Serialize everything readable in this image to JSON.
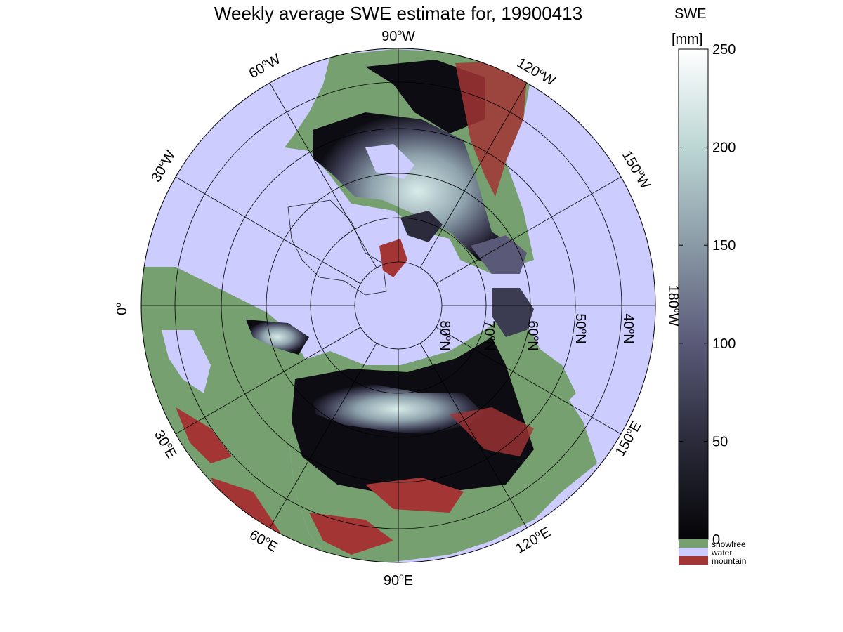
{
  "title": "Weekly average SWE estimate for, 19900413",
  "colorbar": {
    "label_line1": "SWE",
    "label_line2": "[mm]",
    "ticks": [
      0,
      50,
      100,
      150,
      200,
      250
    ],
    "range": [
      0,
      250
    ],
    "colormap": [
      "#050507",
      "#2b2b3b",
      "#5a5a78",
      "#8a9aa6",
      "#bcd6d4",
      "#ffffff"
    ]
  },
  "legend": [
    {
      "label": "snowfree",
      "color": "#76a070"
    },
    {
      "label": "water",
      "color": "#ccccff"
    },
    {
      "label": "mountain",
      "color": "#a33535"
    }
  ],
  "longitude_labels": [
    {
      "deg": "90",
      "suffix": "W"
    },
    {
      "deg": "120",
      "suffix": "W"
    },
    {
      "deg": "150",
      "suffix": "W"
    },
    {
      "deg": "180",
      "suffix": "W"
    },
    {
      "deg": "150",
      "suffix": "E"
    },
    {
      "deg": "120",
      "suffix": "E"
    },
    {
      "deg": "90",
      "suffix": "E"
    },
    {
      "deg": "60",
      "suffix": "E"
    },
    {
      "deg": "30",
      "suffix": "E"
    },
    {
      "deg": "0",
      "suffix": ""
    },
    {
      "deg": "30",
      "suffix": "W"
    },
    {
      "deg": "60",
      "suffix": "W"
    }
  ],
  "latitude_labels": [
    {
      "deg": "80",
      "suffix": "N"
    },
    {
      "deg": "70",
      "suffix": "N"
    },
    {
      "deg": "60",
      "suffix": "N"
    },
    {
      "deg": "50",
      "suffix": "N"
    },
    {
      "deg": "40",
      "suffix": "N"
    }
  ],
  "colors": {
    "water": "#ccccff",
    "snowfree": "#76a070",
    "mountain": "#a33535",
    "swe_low": "#0a0a0e",
    "swe_mid": "#4a4a66",
    "swe_high": "#cfe3e0"
  }
}
